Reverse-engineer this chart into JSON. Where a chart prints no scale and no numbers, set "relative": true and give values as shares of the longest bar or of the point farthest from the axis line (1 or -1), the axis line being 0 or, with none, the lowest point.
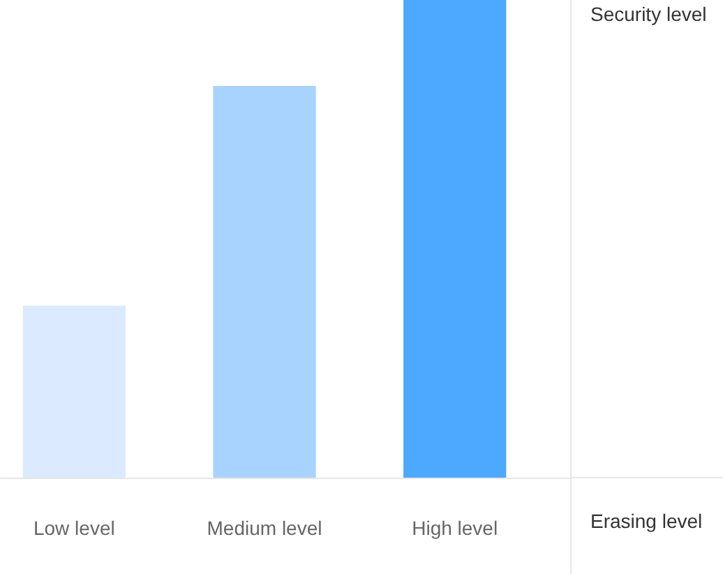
{
  "chart_data": {
    "type": "bar",
    "relative": true,
    "ylabel": "Security level",
    "xlabel": "Erasing level",
    "categories": [
      "Low level",
      "Medium level",
      "High level"
    ],
    "values": [
      0.36,
      0.82,
      1
    ],
    "colors": [
      "#dbeafe",
      "#a8d3ff",
      "#4da8ff"
    ],
    "grid": false,
    "legend": false
  }
}
